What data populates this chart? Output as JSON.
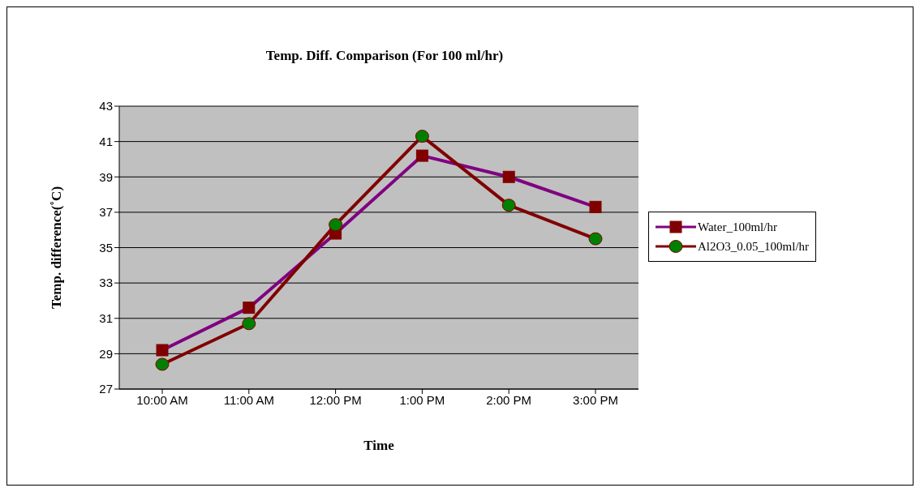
{
  "chart_data": {
    "type": "line",
    "title": "Temp. Diff. Comparison (For 100 ml/hr)",
    "xlabel": "Time",
    "ylabel": "Temp. difference(˚C)",
    "categories": [
      "10:00 AM",
      "11:00 AM",
      "12:00 PM",
      "1:00 PM",
      "2:00 PM",
      "3:00 PM"
    ],
    "series": [
      {
        "name": "Water_100ml/hr",
        "color": "#800080",
        "marker": "square",
        "values": [
          29.2,
          31.6,
          35.8,
          40.2,
          39.0,
          37.3
        ]
      },
      {
        "name": "Al2O3_0.05_100ml/hr",
        "color": "#800000",
        "marker": "circle",
        "values": [
          28.4,
          30.7,
          36.3,
          41.3,
          37.4,
          35.5
        ]
      }
    ],
    "ylim": [
      27,
      43
    ],
    "yticks": [
      27,
      29,
      31,
      33,
      35,
      37,
      39,
      41,
      43
    ],
    "grid": "y",
    "legend": "right"
  }
}
